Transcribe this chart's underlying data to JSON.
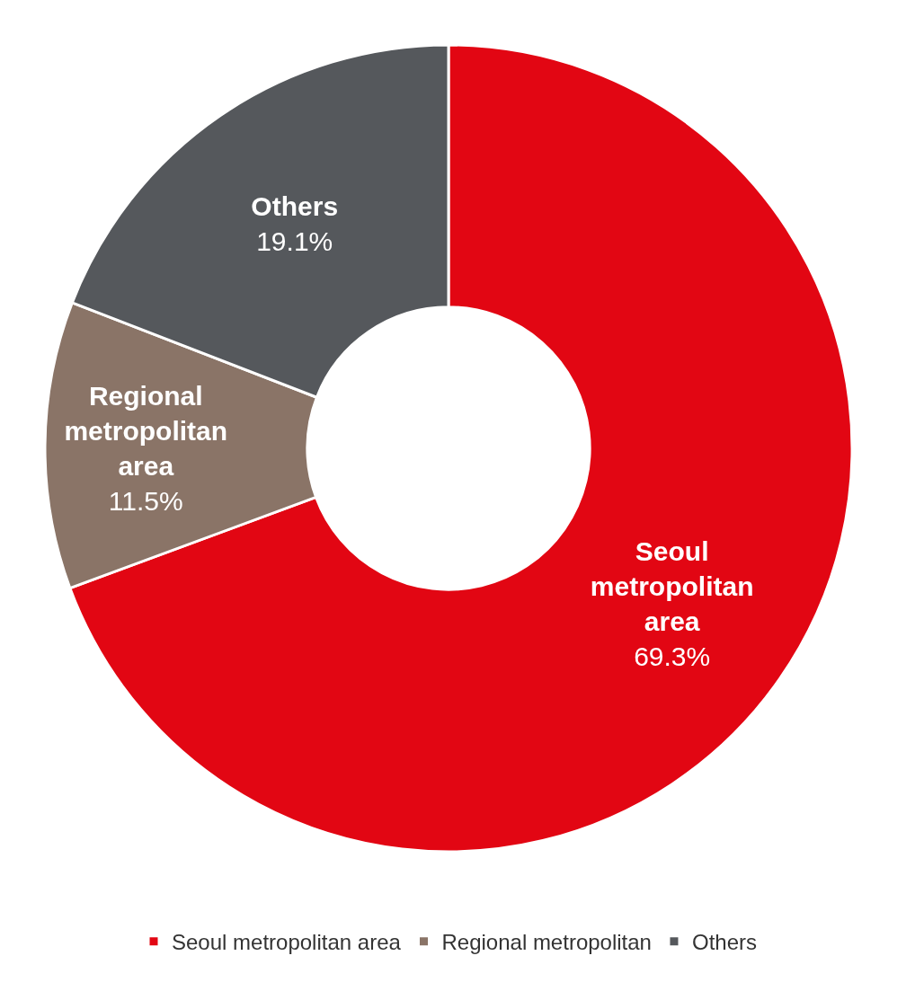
{
  "chart_data": {
    "type": "donut",
    "categories": [
      "Seoul metropolitan area",
      "Regional metropolitan",
      "Others"
    ],
    "values": [
      69.3,
      11.5,
      19.1
    ],
    "colors": [
      "#e20613",
      "#8a7467",
      "#55585c"
    ],
    "value_labels": [
      "69.3%",
      "11.5%",
      "19.1%"
    ],
    "annotations": [
      "Seoul metropolitan area",
      "Regional metropolitan area",
      "Others"
    ],
    "legend": "bottom"
  }
}
